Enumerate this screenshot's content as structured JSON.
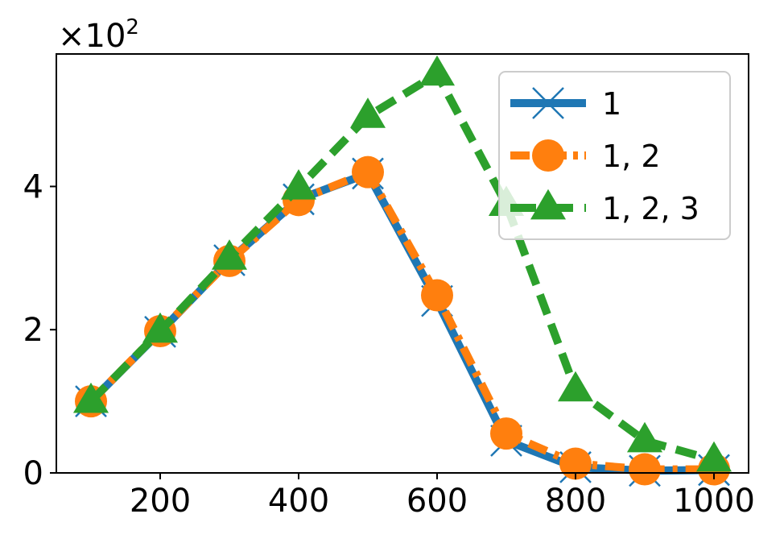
{
  "chart_data": {
    "type": "line",
    "title": "",
    "xlabel": "",
    "ylabel": "",
    "y_multiplier": {
      "base": "×10",
      "exponent": "2"
    },
    "x": [
      100,
      200,
      300,
      400,
      500,
      600,
      700,
      800,
      900,
      1000
    ],
    "xlim": [
      50,
      1050
    ],
    "ylim": [
      0,
      5.85
    ],
    "x_ticks": [
      200,
      400,
      600,
      800,
      1000
    ],
    "y_ticks": [
      0,
      2,
      4
    ],
    "grid": false,
    "legend_position": "upper-right",
    "series": [
      {
        "name": "1",
        "values": [
          1.0,
          1.97,
          2.97,
          3.82,
          4.18,
          2.4,
          0.45,
          0.08,
          0.03,
          0.04
        ],
        "color": "#1f77b4",
        "line_style": "solid",
        "marker": "x"
      },
      {
        "name": "1, 2",
        "values": [
          1.0,
          1.98,
          2.96,
          3.81,
          4.2,
          2.48,
          0.55,
          0.13,
          0.05,
          0.05
        ],
        "color": "#ff7f0e",
        "line_style": "dash-dot",
        "marker": "circle"
      },
      {
        "name": "1, 2, 3",
        "values": [
          1.0,
          1.98,
          3.0,
          3.98,
          4.98,
          5.57,
          3.75,
          1.16,
          0.45,
          0.18
        ],
        "color": "#2ca02c",
        "line_style": "dashed",
        "marker": "triangle"
      }
    ]
  }
}
